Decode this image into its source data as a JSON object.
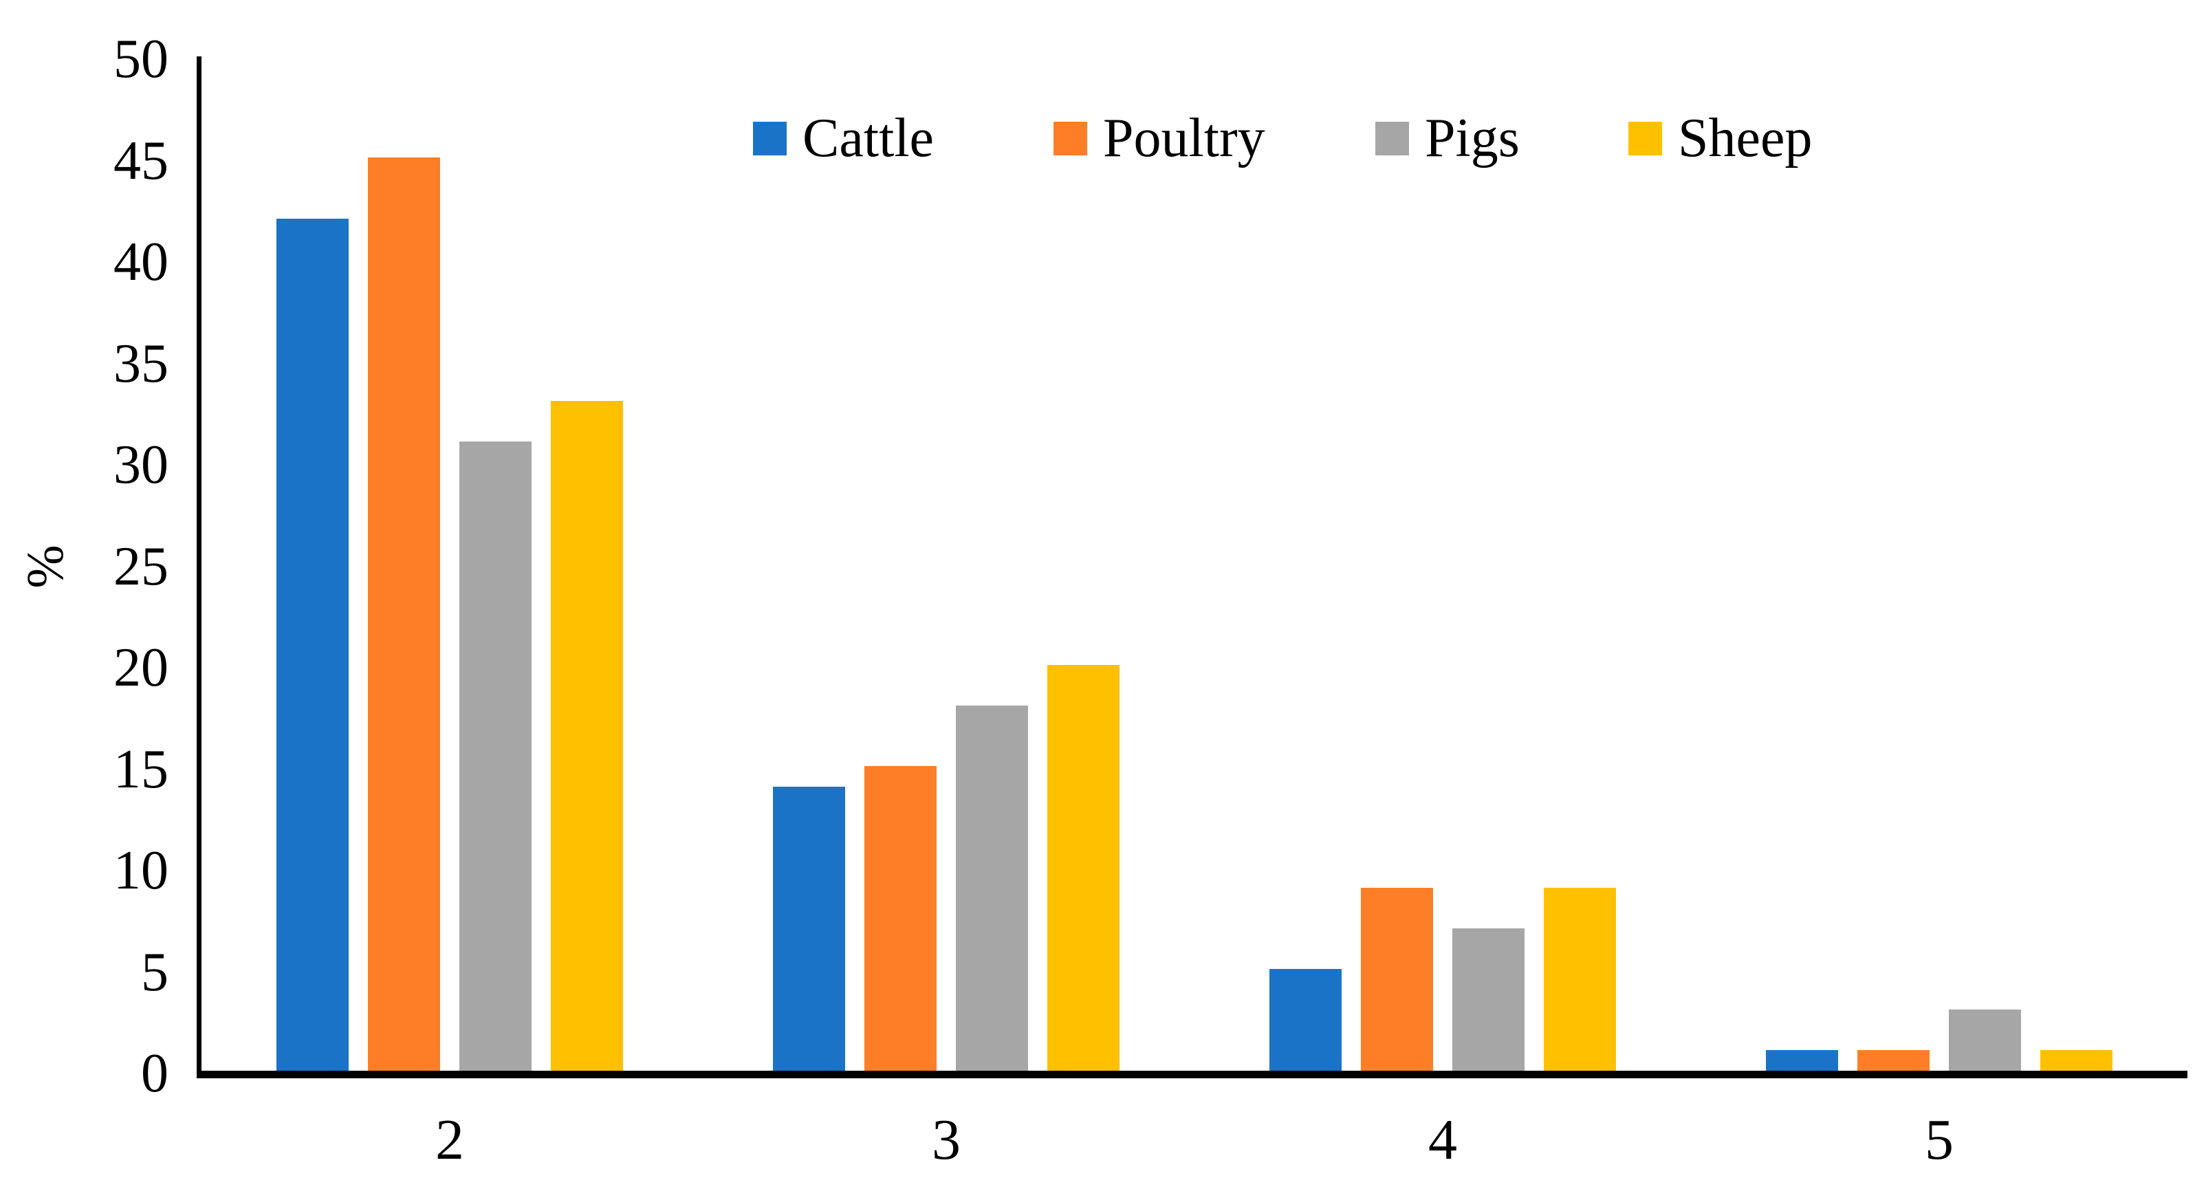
{
  "chart_data": {
    "type": "bar",
    "title": "",
    "categories": [
      "2",
      "3",
      "4",
      "5"
    ],
    "series": [
      {
        "name": "Cattle",
        "color": "#1B73C8",
        "values": [
          42,
          14,
          5,
          1
        ]
      },
      {
        "name": "Poultry",
        "color": "#FD7E27",
        "values": [
          45,
          15,
          9,
          1
        ]
      },
      {
        "name": "Pigs",
        "color": "#A6A6A6",
        "values": [
          31,
          18,
          7,
          3
        ]
      },
      {
        "name": "Sheep",
        "color": "#FFC000",
        "values": [
          33,
          20,
          9,
          1
        ]
      }
    ],
    "ylabel": "%",
    "xlabel": "",
    "ylim": [
      0,
      50
    ],
    "yticks": [
      0,
      5,
      10,
      15,
      20,
      25,
      30,
      35,
      40,
      45,
      50
    ],
    "grid": false,
    "legend_position": "top-center",
    "background": "#FFFFFF",
    "axis_color": "#000000"
  }
}
